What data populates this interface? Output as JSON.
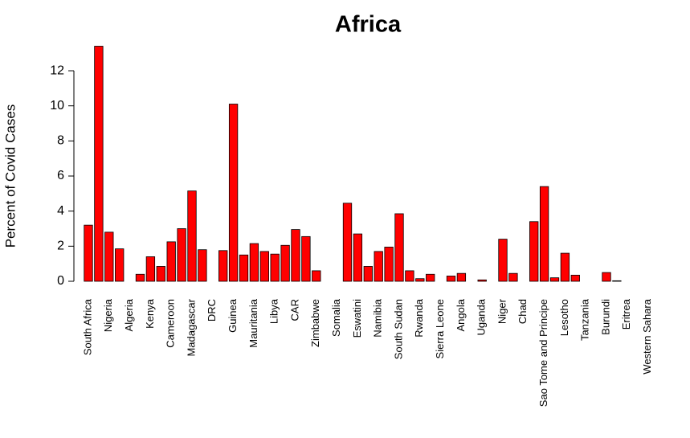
{
  "chart_data": {
    "type": "bar",
    "title": "Africa",
    "y_label": "Percent of Covid Cases",
    "categories": [
      "South Africa",
      null,
      "Nigeria",
      null,
      "Algeria",
      null,
      "Kenya",
      null,
      "Cameroon",
      null,
      "Madagascar",
      null,
      "DRC",
      null,
      "Guinea",
      null,
      "Mauritania",
      null,
      "Libya",
      null,
      "CAR",
      null,
      "Zimbabwe",
      null,
      "Somalia",
      null,
      "Eswatini",
      null,
      "Namibia",
      null,
      "South Sudan",
      null,
      "Rwanda",
      null,
      "Sierra Leone",
      null,
      "Angola",
      null,
      "Uganda",
      null,
      "Niger",
      null,
      "Chad",
      null,
      "Sao Tome and Principe",
      null,
      "Lesotho",
      null,
      "Tanzania",
      null,
      "Burundi",
      null,
      "Eritrea",
      null,
      "Western Sahara"
    ],
    "values": [
      3.2,
      13.4,
      2.8,
      1.85,
      0,
      0.4,
      1.4,
      0.85,
      2.25,
      3.0,
      5.15,
      1.8,
      0,
      1.75,
      10.1,
      1.5,
      2.15,
      1.7,
      1.55,
      2.05,
      2.95,
      2.55,
      0.6,
      0,
      0,
      4.45,
      2.7,
      0.85,
      1.7,
      1.95,
      3.85,
      0.6,
      0.15,
      0.4,
      0,
      0.3,
      0.45,
      0,
      0.08,
      0,
      2.4,
      0.45,
      0,
      3.4,
      5.4,
      0.2,
      1.6,
      0.35,
      0,
      0,
      0.5,
      0.03,
      0,
      0,
      0
    ],
    "color": "#ff0000",
    "ylim": [
      0,
      13.4
    ],
    "yticks": [
      0,
      2,
      4,
      6,
      8,
      10,
      12
    ]
  }
}
